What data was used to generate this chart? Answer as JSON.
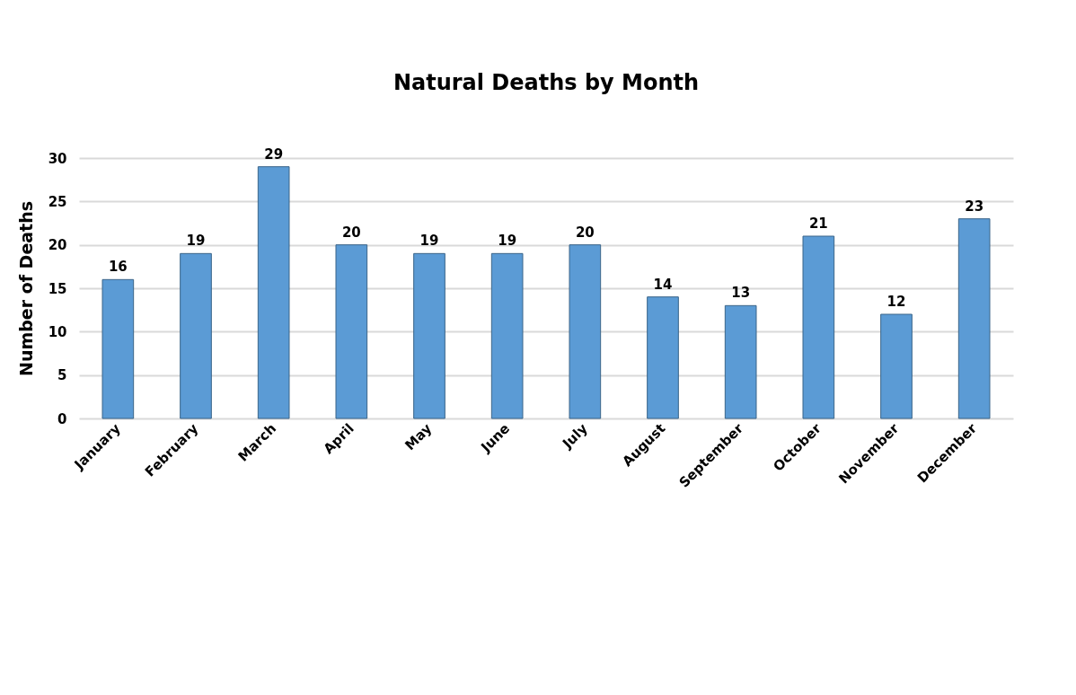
{
  "chart_data": {
    "type": "bar",
    "title": "Natural Deaths by Month",
    "ylabel": "Number of Deaths",
    "categories": [
      "January",
      "February",
      "March",
      "April",
      "May",
      "June",
      "July",
      "August",
      "September",
      "October",
      "November",
      "December"
    ],
    "values": [
      16,
      19,
      29,
      20,
      19,
      19,
      20,
      14,
      13,
      21,
      12,
      23
    ],
    "color": "#5b9bd5",
    "ylim": [
      0,
      30
    ],
    "yticks": [
      0,
      5,
      10,
      15,
      20,
      25,
      30
    ],
    "grid": "y",
    "data_labels": true
  }
}
